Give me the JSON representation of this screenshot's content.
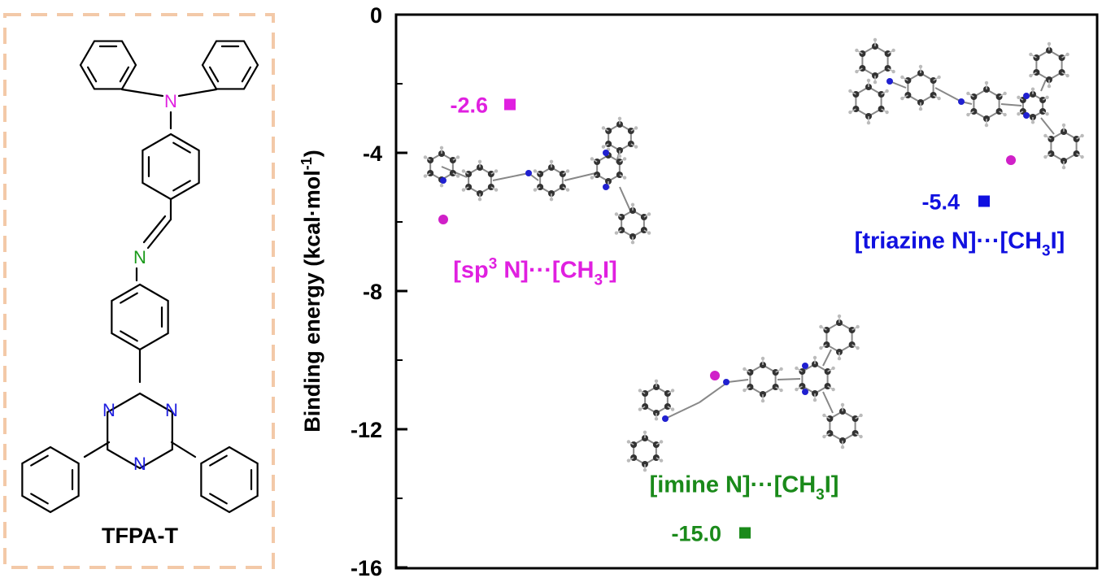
{
  "structure_panel": {
    "compound_name": "TFPA-T",
    "atom_labels": {
      "amine": "N",
      "imine": "N",
      "triazine": "N"
    },
    "frame_color": "#f3c9a8",
    "amine_color": "#e020e0",
    "imine_color": "#1a9a1a",
    "triazine_color": "#2020e0"
  },
  "chart_data": {
    "type": "scatter",
    "ylabel": "Binding energy (kcal·mol",
    "ylabel_sup": "-1",
    "ylabel_close": ")",
    "ylim": [
      -16,
      0
    ],
    "yticks": [
      {
        "value": 0,
        "label": "0"
      },
      {
        "value": -4,
        "label": "-4"
      },
      {
        "value": -8,
        "label": "-8"
      },
      {
        "value": -12,
        "label": "-12"
      },
      {
        "value": -16,
        "label": "-16"
      }
    ],
    "grid": false,
    "points": [
      {
        "id": "sp3",
        "value": -2.6,
        "value_label": "-2.6",
        "color": "#e020e0",
        "site_pre": "[sp",
        "site_sup": "3",
        "site_post": " N]···[CH",
        "site_sub": "3",
        "site_end": "I]"
      },
      {
        "id": "triazine",
        "value": -5.4,
        "value_label": "-5.4",
        "color": "#1010e0",
        "site_pre": "[triazine N]···[CH",
        "site_sup": "",
        "site_post": "",
        "site_sub": "3",
        "site_end": "I]"
      },
      {
        "id": "imine",
        "value": -15.0,
        "value_label": "-15.0",
        "color": "#1a8a1a",
        "site_pre": "[imine N]···[CH",
        "site_sup": "",
        "site_post": "",
        "site_sub": "3",
        "site_end": "I]"
      }
    ]
  }
}
